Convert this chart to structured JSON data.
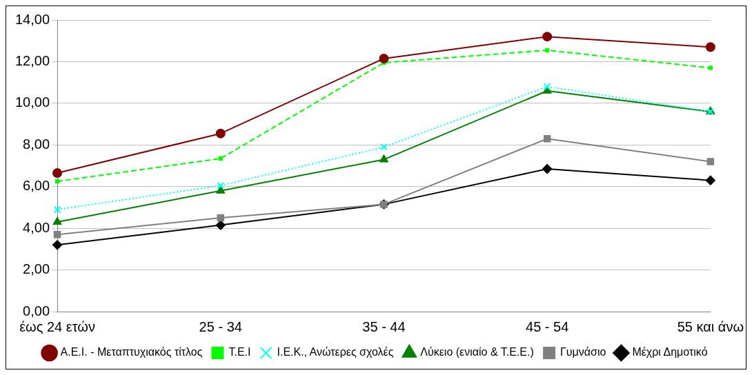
{
  "chart_data": {
    "type": "line",
    "categories": [
      "έως 24 ετών",
      "25 - 34",
      "35 - 44",
      "45 - 54",
      "55 και άνω"
    ],
    "ylim": [
      0,
      14
    ],
    "yticks": [
      {
        "value": 0,
        "label": "0,00"
      },
      {
        "value": 2,
        "label": "2,00"
      },
      {
        "value": 4,
        "label": "4,00"
      },
      {
        "value": 6,
        "label": "6,00"
      },
      {
        "value": 8,
        "label": "8,00"
      },
      {
        "value": 10,
        "label": "10,00"
      },
      {
        "value": 12,
        "label": "12,00"
      },
      {
        "value": 14,
        "label": "14,00"
      }
    ],
    "grid": "y",
    "legend": "bottom",
    "series": [
      {
        "name": "Μέχρι Δημοτικό",
        "color": "#000000",
        "marker": "diamond",
        "line_style": "solid",
        "values": [
          3.2,
          4.15,
          5.15,
          6.85,
          6.3
        ]
      },
      {
        "name": "Γυμνάσιο",
        "color": "#808080",
        "marker": "square",
        "line_style": "solid",
        "values": [
          3.7,
          4.5,
          5.15,
          8.3,
          7.2
        ]
      },
      {
        "name": "Λύκειο (ενιαίο & Τ.Ε.Ε.)",
        "color": "#008000",
        "marker": "triangle",
        "line_style": "solid",
        "values": [
          4.3,
          5.8,
          7.3,
          10.6,
          9.6
        ]
      },
      {
        "name": "Ι.Ε.Κ., Ανώτερες σχολές",
        "color": "#00ffff",
        "marker": "cross",
        "line_style": "dotted",
        "values": [
          4.9,
          6.05,
          7.9,
          10.8,
          9.6
        ]
      },
      {
        "name": "Τ.Ε.Ι",
        "color": "#00ff00",
        "marker": "square",
        "line_style": "dashed",
        "values": [
          6.25,
          7.35,
          11.95,
          12.55,
          11.7
        ]
      },
      {
        "name": "Α.Ε.Ι. - Μεταπτυχιακός τίτλος",
        "color": "#800000",
        "marker": "circle",
        "line_style": "solid",
        "values": [
          6.65,
          8.55,
          12.15,
          13.2,
          12.7
        ]
      }
    ]
  }
}
